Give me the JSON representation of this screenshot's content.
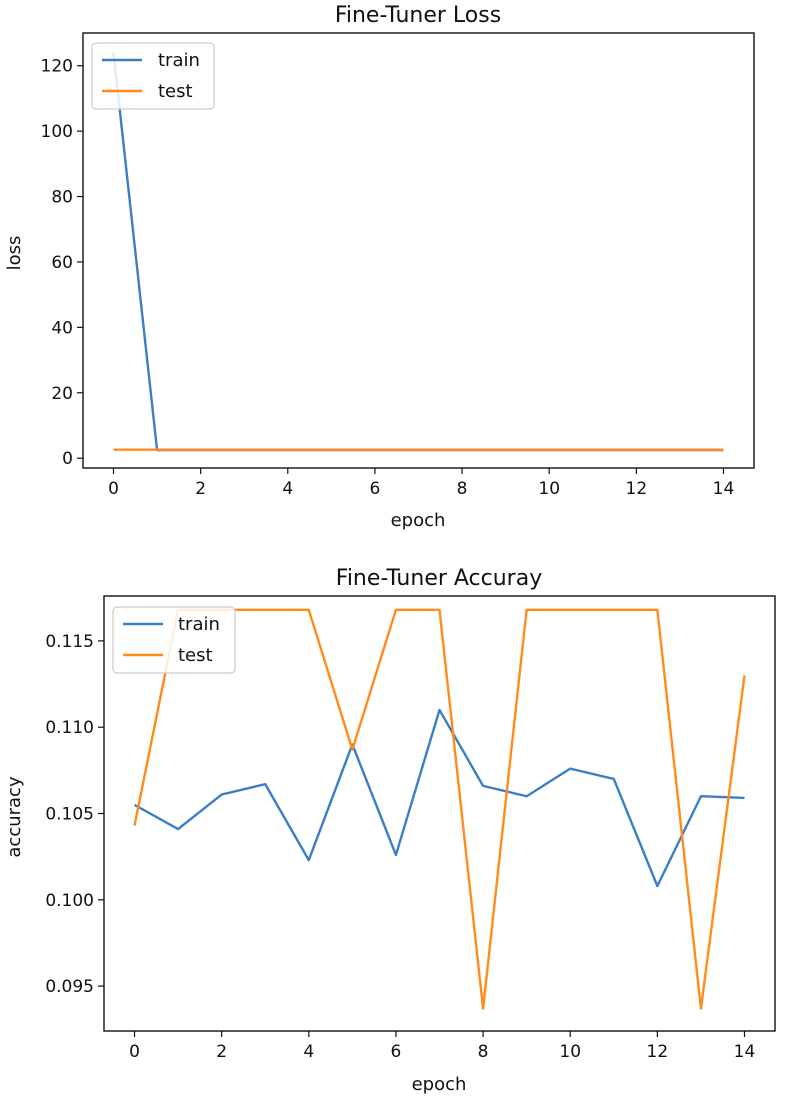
{
  "colors": {
    "train": "#3a7fc1",
    "test": "#ff8c1a",
    "axis": "#111111",
    "legend_border": "#cccccc"
  },
  "chart_data": [
    {
      "type": "line",
      "title": "Fine-Tuner Loss",
      "xlabel": "epoch",
      "ylabel": "loss",
      "xlim": [
        -0.7,
        14.7
      ],
      "ylim": [
        -3,
        130
      ],
      "xticks": [
        0,
        2,
        4,
        6,
        8,
        10,
        12,
        14
      ],
      "xtick_labels": [
        "0",
        "2",
        "4",
        "6",
        "8",
        "10",
        "12",
        "14"
      ],
      "yticks": [
        0,
        20,
        40,
        60,
        80,
        100,
        120
      ],
      "ytick_labels": [
        "0",
        "20",
        "40",
        "60",
        "80",
        "100",
        "120"
      ],
      "legend_position": "upper left",
      "x": [
        0,
        1,
        2,
        3,
        4,
        5,
        6,
        7,
        8,
        9,
        10,
        11,
        12,
        13,
        14
      ],
      "series": [
        {
          "name": "train",
          "color_key": "train",
          "values": [
            124,
            2.5,
            2.5,
            2.5,
            2.5,
            2.5,
            2.5,
            2.5,
            2.5,
            2.5,
            2.5,
            2.5,
            2.5,
            2.5,
            2.5
          ]
        },
        {
          "name": "test",
          "color_key": "test",
          "values": [
            2.6,
            2.6,
            2.6,
            2.6,
            2.6,
            2.6,
            2.6,
            2.6,
            2.6,
            2.6,
            2.6,
            2.6,
            2.6,
            2.6,
            2.6
          ]
        }
      ]
    },
    {
      "type": "line",
      "title": "Fine-Tuner Accuray",
      "xlabel": "epoch",
      "ylabel": "accuracy",
      "xlim": [
        -0.7,
        14.7
      ],
      "ylim": [
        0.0924,
        0.1176
      ],
      "xticks": [
        0,
        2,
        4,
        6,
        8,
        10,
        12,
        14
      ],
      "xtick_labels": [
        "0",
        "2",
        "4",
        "6",
        "8",
        "10",
        "12",
        "14"
      ],
      "yticks": [
        0.095,
        0.1,
        0.105,
        0.11,
        0.115
      ],
      "ytick_labels": [
        "0.095",
        "0.100",
        "0.105",
        "0.110",
        "0.115"
      ],
      "legend_position": "upper left",
      "x": [
        0,
        1,
        2,
        3,
        4,
        5,
        6,
        7,
        8,
        9,
        10,
        11,
        12,
        13,
        14
      ],
      "series": [
        {
          "name": "train",
          "color_key": "train",
          "values": [
            0.1055,
            0.1041,
            0.1061,
            0.1067,
            0.1023,
            0.109,
            0.1026,
            0.111,
            0.1066,
            0.106,
            0.1076,
            0.107,
            0.1008,
            0.106,
            0.1059
          ]
        },
        {
          "name": "test",
          "color_key": "test",
          "values": [
            0.1043,
            0.1168,
            0.1168,
            0.1168,
            0.1168,
            0.1087,
            0.1168,
            0.1168,
            0.0937,
            0.1168,
            0.1168,
            0.1168,
            0.1168,
            0.0937,
            0.113
          ]
        }
      ]
    }
  ]
}
